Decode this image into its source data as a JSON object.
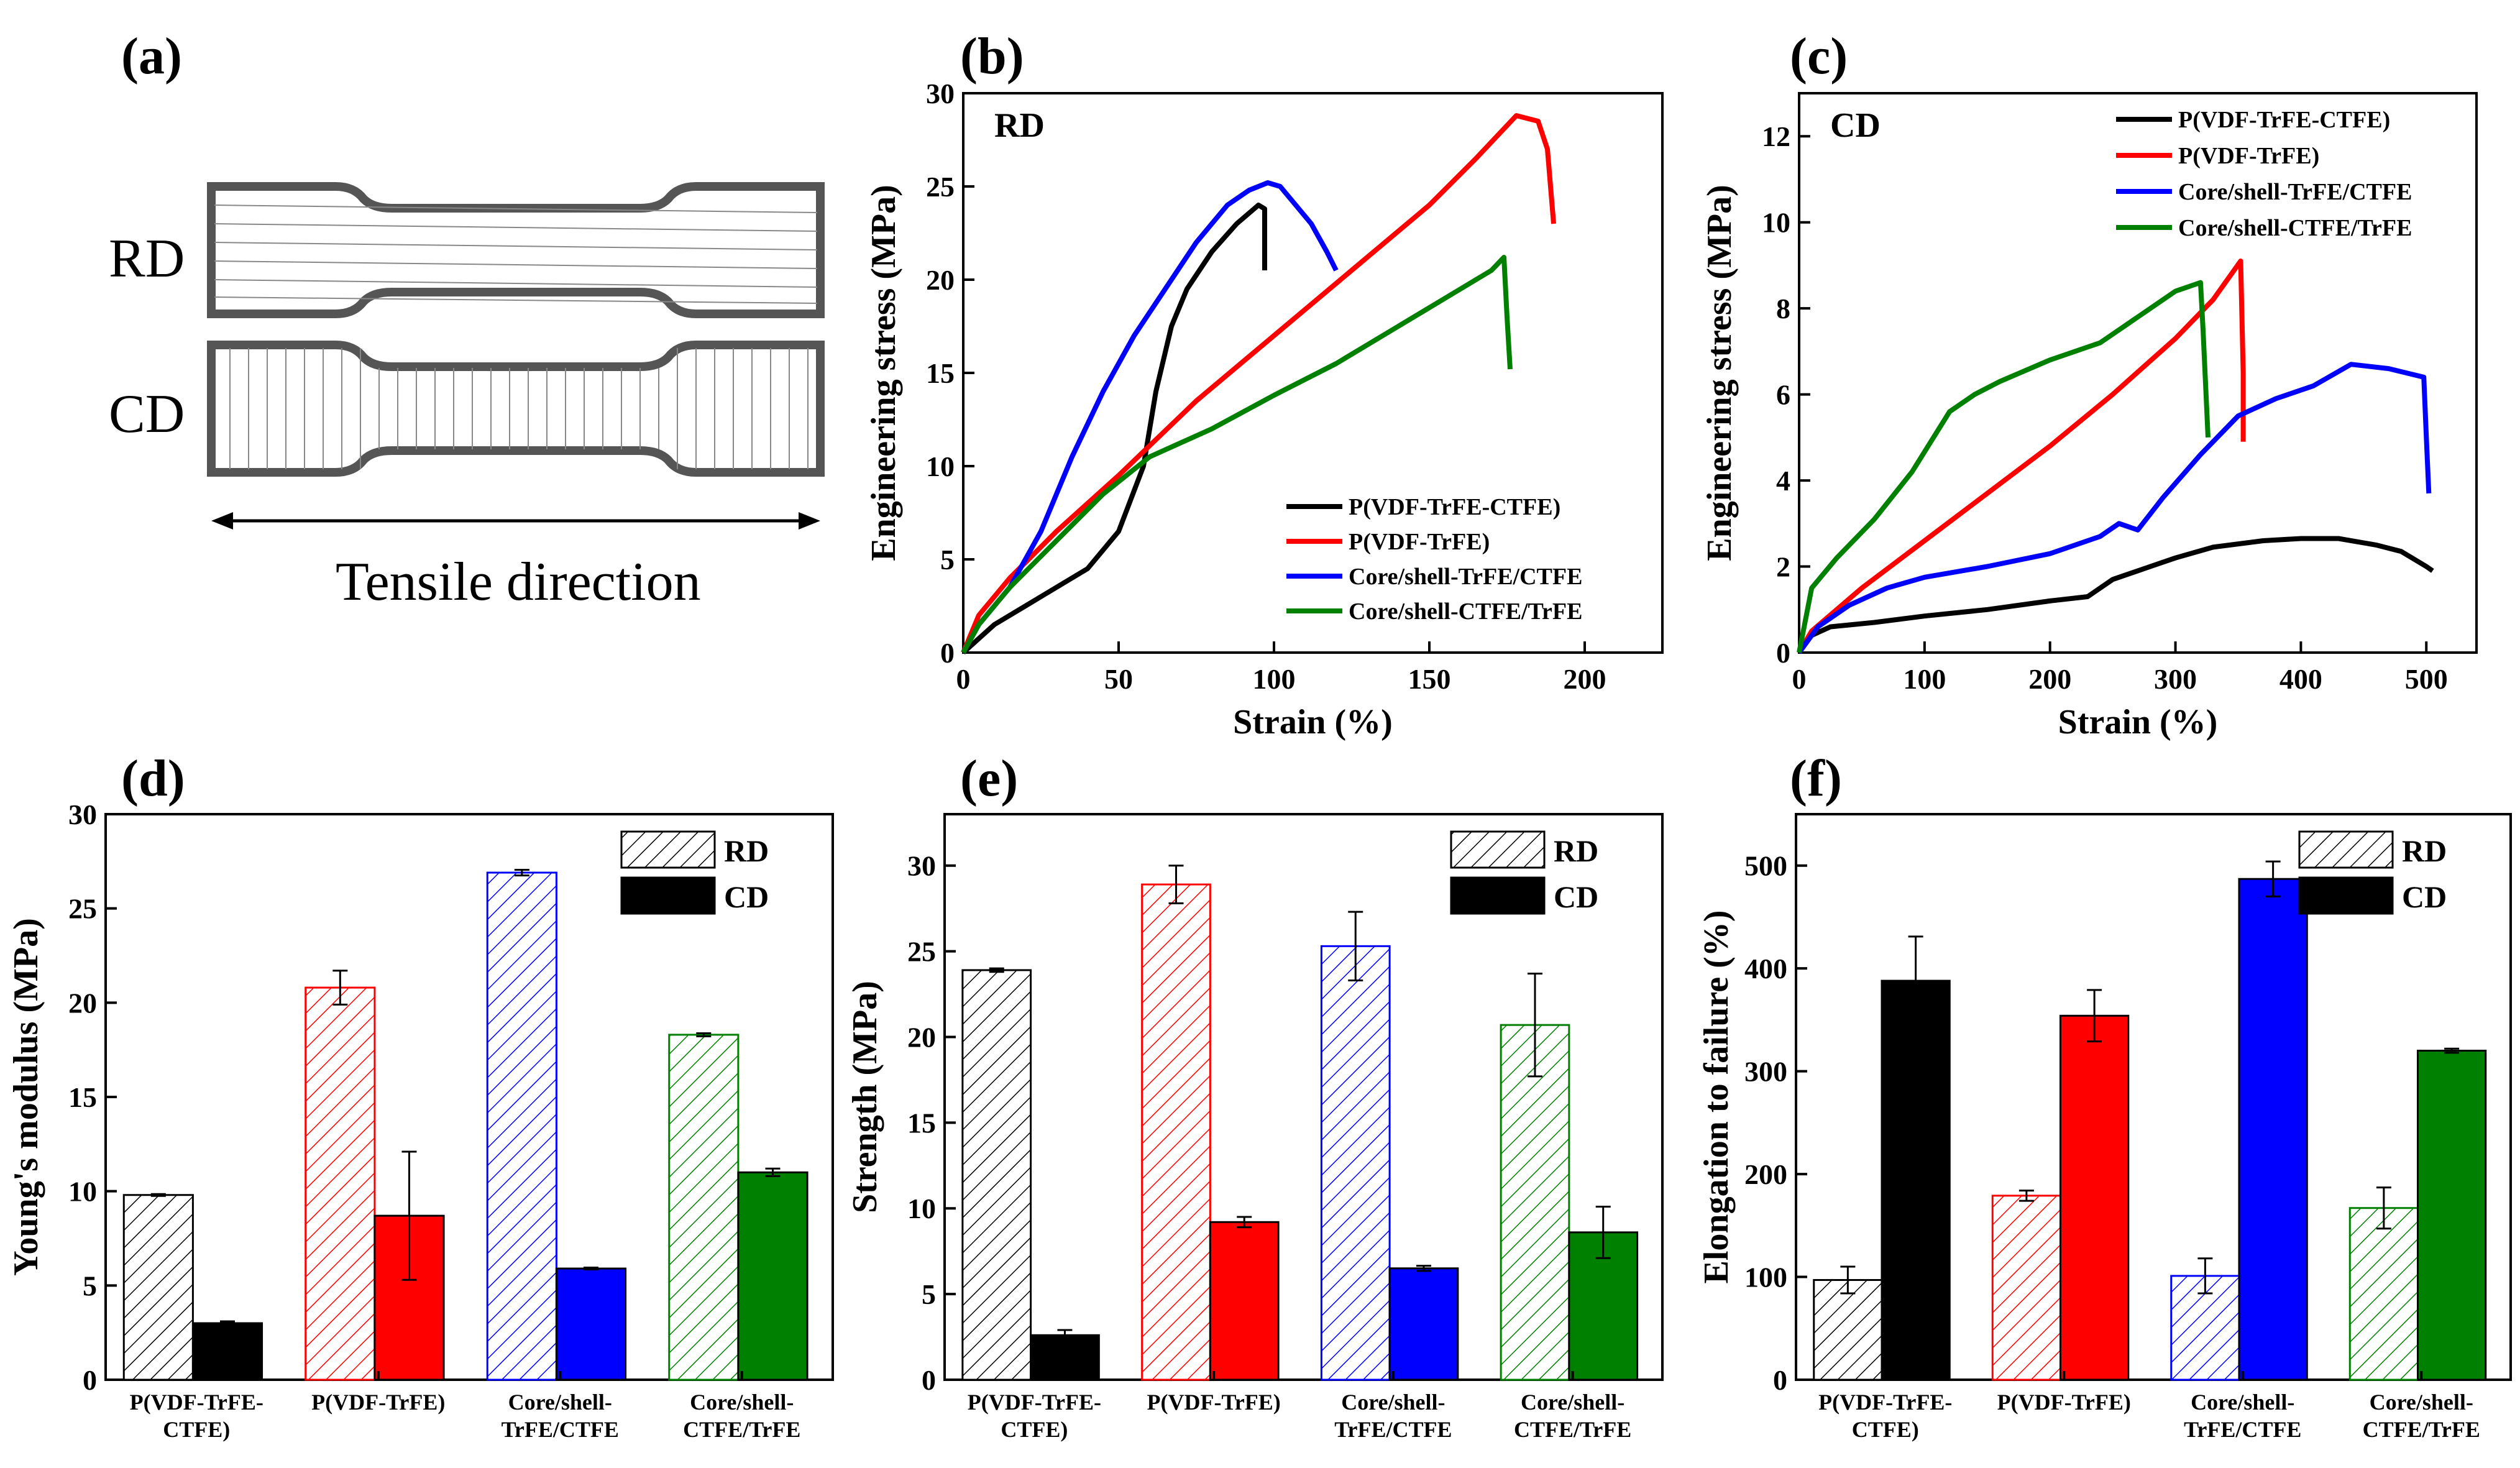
{
  "panel_labels": {
    "a": "(a)",
    "b": "(b)",
    "c": "(c)",
    "d": "(d)",
    "e": "(e)",
    "f": "(f)"
  },
  "colors": {
    "pvdf_trfe_ctfe": "#000000",
    "pvdf_trfe": "#ff0000",
    "cs_trfe_ctfe": "#0000ff",
    "cs_ctfe_trfe": "#008000"
  },
  "schematic": {
    "rd_label": "RD",
    "cd_label": "CD",
    "direction_label": "Tensile direction"
  },
  "chart_data": [
    {
      "id": "b",
      "type": "line",
      "tag": "RD",
      "xlabel": "Strain (%)",
      "ylabel": "Engineering stress (MPa)",
      "xlim": [
        0,
        225
      ],
      "ylim": [
        0,
        30
      ],
      "xticks": [
        0,
        50,
        100,
        150,
        200
      ],
      "yticks": [
        0,
        5,
        10,
        15,
        20,
        25,
        30
      ],
      "series": [
        {
          "name": "P(VDF-TrFE-CTFE)",
          "color": "#000000",
          "points": [
            [
              0,
              0
            ],
            [
              10,
              1.5
            ],
            [
              25,
              3
            ],
            [
              40,
              4.5
            ],
            [
              50,
              6.5
            ],
            [
              58,
              10
            ],
            [
              62,
              14
            ],
            [
              67,
              17.5
            ],
            [
              72,
              19.5
            ],
            [
              80,
              21.5
            ],
            [
              88,
              23
            ],
            [
              95,
              24
            ],
            [
              97,
              23.8
            ],
            [
              97,
              20.5
            ]
          ]
        },
        {
          "name": "P(VDF-TrFE)",
          "color": "#ff0000",
          "points": [
            [
              0,
              0
            ],
            [
              5,
              2
            ],
            [
              15,
              4
            ],
            [
              30,
              6.5
            ],
            [
              50,
              9.5
            ],
            [
              75,
              13.5
            ],
            [
              100,
              17
            ],
            [
              125,
              20.5
            ],
            [
              150,
              24
            ],
            [
              165,
              26.5
            ],
            [
              178,
              28.8
            ],
            [
              185,
              28.5
            ],
            [
              188,
              27
            ],
            [
              189,
              25
            ],
            [
              190,
              23
            ]
          ]
        },
        {
          "name": "Core/shell-TrFE/CTFE",
          "color": "#0000ff",
          "points": [
            [
              0,
              0
            ],
            [
              5,
              1.5
            ],
            [
              15,
              3.5
            ],
            [
              25,
              6.5
            ],
            [
              35,
              10.5
            ],
            [
              45,
              14
            ],
            [
              55,
              17
            ],
            [
              65,
              19.5
            ],
            [
              75,
              22
            ],
            [
              85,
              24
            ],
            [
              92,
              24.8
            ],
            [
              98,
              25.2
            ],
            [
              102,
              25
            ],
            [
              107,
              24
            ],
            [
              112,
              23
            ],
            [
              117,
              21.5
            ],
            [
              120,
              20.5
            ]
          ]
        },
        {
          "name": "Core/shell-CTFE/TrFE",
          "color": "#008000",
          "points": [
            [
              0,
              0
            ],
            [
              5,
              1.5
            ],
            [
              15,
              3.5
            ],
            [
              30,
              6
            ],
            [
              45,
              8.5
            ],
            [
              60,
              10.5
            ],
            [
              80,
              12
            ],
            [
              100,
              13.8
            ],
            [
              120,
              15.5
            ],
            [
              140,
              17.5
            ],
            [
              155,
              19
            ],
            [
              165,
              20
            ],
            [
              170,
              20.5
            ],
            [
              174,
              21.2
            ],
            [
              175,
              18
            ],
            [
              176,
              15.2
            ]
          ]
        }
      ]
    },
    {
      "id": "c",
      "type": "line",
      "tag": "CD",
      "xlabel": "Strain (%)",
      "ylabel": "Engineering stress (MPa)",
      "xlim": [
        0,
        540
      ],
      "ylim": [
        0,
        13
      ],
      "xticks": [
        0,
        100,
        200,
        300,
        400,
        500
      ],
      "yticks": [
        0,
        2,
        4,
        6,
        8,
        10,
        12
      ],
      "series": [
        {
          "name": "P(VDF-TrFE-CTFE)",
          "color": "#000000",
          "points": [
            [
              0,
              0
            ],
            [
              10,
              0.4
            ],
            [
              25,
              0.6
            ],
            [
              60,
              0.7
            ],
            [
              100,
              0.85
            ],
            [
              150,
              1.0
            ],
            [
              200,
              1.2
            ],
            [
              230,
              1.3
            ],
            [
              250,
              1.7
            ],
            [
              280,
              2.0
            ],
            [
              300,
              2.2
            ],
            [
              330,
              2.45
            ],
            [
              370,
              2.6
            ],
            [
              400,
              2.65
            ],
            [
              430,
              2.65
            ],
            [
              460,
              2.5
            ],
            [
              480,
              2.35
            ],
            [
              500,
              2.0
            ],
            [
              505,
              1.9
            ]
          ]
        },
        {
          "name": "P(VDF-TrFE)",
          "color": "#ff0000",
          "points": [
            [
              0,
              0
            ],
            [
              10,
              0.5
            ],
            [
              50,
              1.5
            ],
            [
              100,
              2.6
            ],
            [
              150,
              3.7
            ],
            [
              200,
              4.8
            ],
            [
              250,
              6.0
            ],
            [
              300,
              7.3
            ],
            [
              330,
              8.2
            ],
            [
              352,
              9.1
            ],
            [
              354,
              6.5
            ],
            [
              354,
              4.9
            ]
          ]
        },
        {
          "name": "Core/shell-TrFE/CTFE",
          "color": "#0000ff",
          "points": [
            [
              0,
              0
            ],
            [
              15,
              0.6
            ],
            [
              40,
              1.1
            ],
            [
              70,
              1.5
            ],
            [
              100,
              1.75
            ],
            [
              150,
              2.0
            ],
            [
              200,
              2.3
            ],
            [
              240,
              2.7
            ],
            [
              255,
              3.0
            ],
            [
              270,
              2.85
            ],
            [
              290,
              3.6
            ],
            [
              320,
              4.6
            ],
            [
              350,
              5.5
            ],
            [
              380,
              5.9
            ],
            [
              410,
              6.2
            ],
            [
              440,
              6.7
            ],
            [
              470,
              6.6
            ],
            [
              498,
              6.4
            ],
            [
              500,
              5.0
            ],
            [
              502,
              3.7
            ]
          ]
        },
        {
          "name": "Core/shell-CTFE/TrFE",
          "color": "#008000",
          "points": [
            [
              0,
              0
            ],
            [
              10,
              1.5
            ],
            [
              30,
              2.2
            ],
            [
              60,
              3.1
            ],
            [
              90,
              4.2
            ],
            [
              120,
              5.6
            ],
            [
              140,
              6.0
            ],
            [
              160,
              6.3
            ],
            [
              200,
              6.8
            ],
            [
              240,
              7.2
            ],
            [
              270,
              7.8
            ],
            [
              300,
              8.4
            ],
            [
              320,
              8.6
            ],
            [
              322,
              7.5
            ],
            [
              326,
              5.0
            ]
          ]
        }
      ]
    },
    {
      "id": "d",
      "type": "bar",
      "ylabel": "Young's modulus (MPa)",
      "ylim": [
        0,
        30
      ],
      "yticks": [
        0,
        5,
        10,
        15,
        20,
        25,
        30
      ],
      "categories": [
        [
          "P(VDF-TrFE-",
          "CTFE)"
        ],
        [
          "P(VDF-TrFE)"
        ],
        [
          "Core/shell-",
          "TrFE/CTFE"
        ],
        [
          "Core/shell-",
          "CTFE/TrFE"
        ]
      ],
      "legend": [
        "RD",
        "CD"
      ],
      "rd": [
        9.8,
        20.8,
        26.9,
        18.3
      ],
      "rd_err": [
        0.05,
        0.9,
        0.15,
        0.08
      ],
      "cd": [
        3.0,
        8.7,
        5.9,
        11.0
      ],
      "cd_err": [
        0.1,
        3.4,
        0.05,
        0.2
      ]
    },
    {
      "id": "e",
      "type": "bar",
      "ylabel": "Strength (MPa)",
      "ylim": [
        0,
        33
      ],
      "yticks": [
        0,
        5,
        10,
        15,
        20,
        25,
        30
      ],
      "categories": [
        [
          "P(VDF-TrFE-",
          "CTFE)"
        ],
        [
          "P(VDF-TrFE)"
        ],
        [
          "Core/shell-",
          "TrFE/CTFE"
        ],
        [
          "Core/shell-",
          "CTFE/TrFE"
        ]
      ],
      "legend": [
        "RD",
        "CD"
      ],
      "rd": [
        23.9,
        28.9,
        25.3,
        20.7
      ],
      "rd_err": [
        0.1,
        1.1,
        2.0,
        3.0
      ],
      "cd": [
        2.6,
        9.2,
        6.5,
        8.6
      ],
      "cd_err": [
        0.3,
        0.3,
        0.15,
        1.5
      ]
    },
    {
      "id": "f",
      "type": "bar",
      "ylabel": "Elongation to failure (%)",
      "ylim": [
        0,
        550
      ],
      "yticks": [
        0,
        100,
        200,
        300,
        400,
        500
      ],
      "categories": [
        [
          "P(VDF-TrFE-",
          "CTFE)"
        ],
        [
          "P(VDF-TrFE)"
        ],
        [
          "Core/shell-",
          "TrFE/CTFE"
        ],
        [
          "Core/shell-",
          "CTFE/TrFE"
        ]
      ],
      "legend": [
        "RD",
        "CD"
      ],
      "rd": [
        97,
        179,
        101,
        167
      ],
      "rd_err": [
        13,
        5,
        17,
        20
      ],
      "cd": [
        388,
        354,
        487,
        320
      ],
      "cd_err": [
        43,
        25,
        17,
        2
      ]
    }
  ]
}
